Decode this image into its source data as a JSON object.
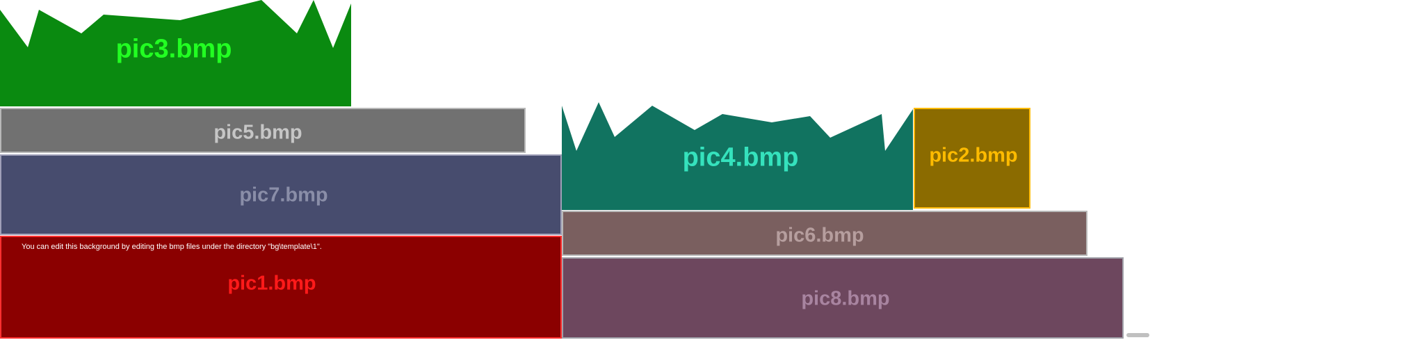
{
  "tiles": {
    "pic1": {
      "label": "pic1.bmp",
      "fill": "#8b0000",
      "text_color": "#ff1a1a",
      "border": "#ff3030"
    },
    "pic2": {
      "label": "pic2.bmp",
      "fill": "#8b6b00",
      "text_color": "#ffbb00",
      "border": "#ffbb00"
    },
    "pic3": {
      "label": "pic3.bmp",
      "fill": "#0a8a10",
      "text_color": "#22ff22",
      "border": "#0a8a10"
    },
    "pic4": {
      "label": "pic4.bmp",
      "fill": "#117360",
      "text_color": "#35e2bd",
      "border": "#117360"
    },
    "pic5": {
      "label": "pic5.bmp",
      "fill": "#717171",
      "text_color": "#c6c6c6",
      "border": "#b8b8b8"
    },
    "pic6": {
      "label": "pic6.bmp",
      "fill": "#7a5f5f",
      "text_color": "#b69e9e",
      "border": "#b8b8b8"
    },
    "pic7": {
      "label": "pic7.bmp",
      "fill": "#474c6e",
      "text_color": "#8a8ea8",
      "border": "#a0a0b8"
    },
    "pic8": {
      "label": "pic8.bmp",
      "fill": "#6d475e",
      "text_color": "#a884a0",
      "border": "#a0a0a8"
    }
  },
  "note": "You can edit this background by editing the bmp files under the directory \"bg\\template\\1\"."
}
